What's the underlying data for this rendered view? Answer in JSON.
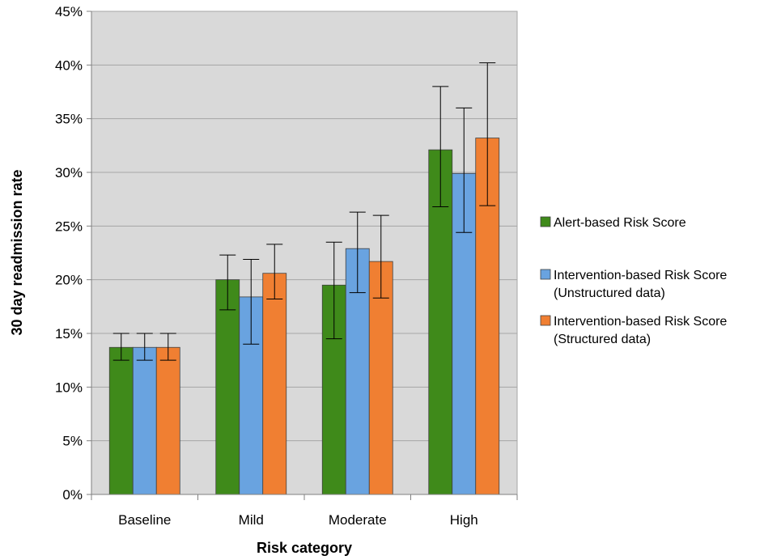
{
  "chart_data": {
    "type": "bar",
    "categories": [
      "Baseline",
      "Mild",
      "Moderate",
      "High"
    ],
    "xlabel": "Risk category",
    "ylabel": "30 day readmission rate",
    "ylim": [
      0,
      45
    ],
    "yticks": [
      "0%",
      "5%",
      "10%",
      "15%",
      "20%",
      "25%",
      "30%",
      "35%",
      "40%",
      "45%"
    ],
    "grid": "horizontal",
    "legend_position": "right",
    "series": [
      {
        "name": "Alert-based Risk Score",
        "color": "#3f8a1a",
        "values": [
          13.7,
          20.0,
          19.5,
          32.1
        ],
        "err_low": [
          12.5,
          17.2,
          14.5,
          26.8
        ],
        "err_high": [
          15.0,
          22.3,
          23.5,
          38.0
        ]
      },
      {
        "name": "Intervention-based Risk Score (Unstructured data)",
        "color": "#69a3e0",
        "values": [
          13.7,
          18.4,
          22.9,
          29.9
        ],
        "err_low": [
          12.5,
          14.0,
          18.8,
          24.4
        ],
        "err_high": [
          15.0,
          21.9,
          26.3,
          36.0
        ]
      },
      {
        "name": "Intervention-based Risk Score (Structured data)",
        "color": "#f07f32",
        "values": [
          13.7,
          20.6,
          21.7,
          33.2
        ],
        "err_low": [
          12.5,
          18.2,
          18.3,
          26.9
        ],
        "err_high": [
          15.0,
          23.3,
          26.0,
          40.2
        ]
      }
    ],
    "legend": [
      {
        "lines": [
          "Alert-based Risk Score"
        ]
      },
      {
        "lines": [
          "Intervention-based Risk Score",
          "(Unstructured data)"
        ]
      },
      {
        "lines": [
          "Intervention-based Risk Score",
          "(Structured data)"
        ]
      }
    ]
  }
}
